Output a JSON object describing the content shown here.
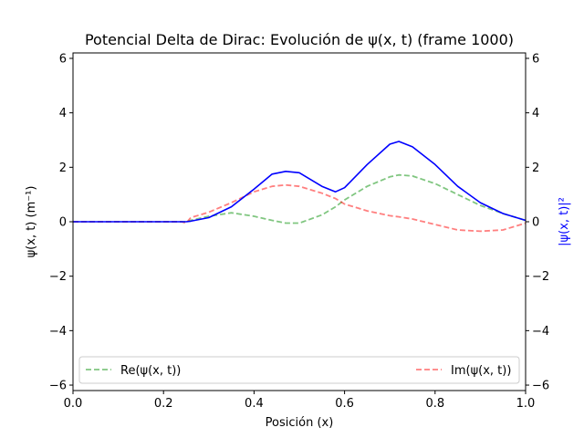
{
  "chart_data": {
    "type": "line",
    "title": "Potencial Delta de Dirac: Evolución de ψ(x, t) (frame 1000)",
    "xlabel": "Posición (x)",
    "ylabel_left": "ψ(x, t) (m⁻¹)",
    "ylabel_right": "|ψ(x, t)|²",
    "xlim": [
      0.0,
      1.0
    ],
    "ylim": [
      -6.2,
      6.2
    ],
    "ylim_right": [
      -6.2,
      6.2
    ],
    "x_ticks": [
      "0.0",
      "0.2",
      "0.4",
      "0.6",
      "0.8",
      "1.0"
    ],
    "y_ticks": [
      "6",
      "4",
      "2",
      "0",
      "−2",
      "−4",
      "−6"
    ],
    "y_ticks_right": [
      "6",
      "4",
      "2",
      "0",
      "−2",
      "−4",
      "−6"
    ],
    "grid": false,
    "legend_position": "lower",
    "x": [
      0.0,
      0.05,
      0.1,
      0.15,
      0.2,
      0.24,
      0.25,
      0.26,
      0.3,
      0.35,
      0.4,
      0.44,
      0.47,
      0.5,
      0.55,
      0.58,
      0.6,
      0.65,
      0.7,
      0.72,
      0.75,
      0.8,
      0.85,
      0.9,
      0.95,
      1.0
    ],
    "series": [
      {
        "name": "Re(ψ(x, t))",
        "color": "#2ca02c",
        "style": "dashed",
        "axis": "left",
        "values": [
          0.0,
          0.0,
          0.0,
          0.0,
          0.0,
          0.0,
          0.0,
          0.05,
          0.2,
          0.33,
          0.2,
          0.05,
          -0.05,
          -0.05,
          0.25,
          0.55,
          0.8,
          1.3,
          1.65,
          1.72,
          1.68,
          1.4,
          1.0,
          0.6,
          0.3,
          0.05
        ]
      },
      {
        "name": "Im(ψ(x, t))",
        "color": "#ff0000",
        "style": "dashed",
        "axis": "left",
        "values": [
          0.0,
          0.0,
          0.0,
          0.0,
          0.0,
          0.0,
          -0.05,
          0.15,
          0.35,
          0.7,
          1.1,
          1.3,
          1.35,
          1.3,
          1.05,
          0.85,
          0.65,
          0.4,
          0.22,
          0.18,
          0.1,
          -0.1,
          -0.3,
          -0.35,
          -0.3,
          -0.05
        ]
      },
      {
        "name": "|ψ(x, t)|²",
        "color": "#0000ff",
        "style": "solid",
        "axis": "right",
        "values": [
          0.0,
          0.0,
          0.0,
          0.0,
          0.0,
          0.0,
          0.0,
          0.02,
          0.15,
          0.55,
          1.2,
          1.75,
          1.85,
          1.8,
          1.3,
          1.1,
          1.25,
          2.1,
          2.85,
          2.95,
          2.75,
          2.1,
          1.3,
          0.7,
          0.3,
          0.05
        ]
      }
    ]
  }
}
